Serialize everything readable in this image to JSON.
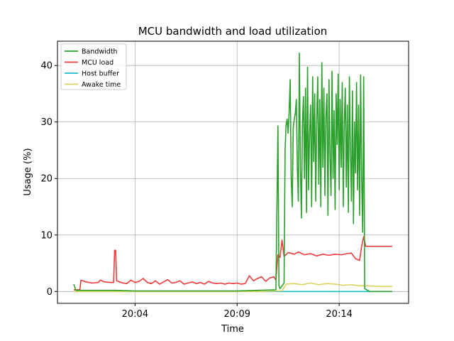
{
  "chart_data": {
    "type": "line",
    "title": "MCU bandwidth and load utilization",
    "xlabel": "Time",
    "ylabel": "Usage (%)",
    "x_unit": "minutes",
    "xlim": [
      "20:00.2",
      "20:17.4"
    ],
    "ylim": [
      -2.1,
      44.3
    ],
    "x_ticks": [
      {
        "value": "20:04",
        "label": "20:04"
      },
      {
        "value": "20:09",
        "label": "20:09"
      },
      {
        "value": "20:14",
        "label": "20:14"
      }
    ],
    "y_ticks": [
      0,
      10,
      20,
      30,
      40
    ],
    "grid": true,
    "legend": "upper left",
    "colors": {
      "bandwidth": "#2ca02c",
      "mcu_load": "#ef3b3b",
      "host_buffer": "#17becf",
      "awake_time": "#d9d45c"
    },
    "series": [
      {
        "name": "Bandwidth",
        "color": "#2ca02c",
        "points": [
          [
            "20:01.0",
            1.3
          ],
          [
            "20:01.1",
            0.2
          ],
          [
            "20:02.0",
            0.2
          ],
          [
            "20:03.0",
            0.2
          ],
          [
            "20:04.0",
            0.1
          ],
          [
            "20:05.0",
            0.1
          ],
          [
            "20:06.0",
            0.1
          ],
          [
            "20:07.0",
            0.1
          ],
          [
            "20:08.0",
            0.1
          ],
          [
            "20:09.0",
            0.1
          ],
          [
            "20:10.0",
            0.2
          ],
          [
            "20:10.9",
            0.3
          ],
          [
            "20:11.0",
            29.3
          ],
          [
            "20:11.05",
            1.0
          ],
          [
            "20:11.1",
            0.5
          ],
          [
            "20:11.3",
            1.5
          ],
          [
            "20:11.35",
            25.0
          ],
          [
            "20:11.4",
            29.5
          ],
          [
            "20:11.45",
            30.5
          ],
          [
            "20:11.5",
            28.0
          ],
          [
            "20:11.55",
            32.0
          ],
          [
            "20:11.6",
            37.5
          ],
          [
            "20:11.65",
            20.0
          ],
          [
            "20:11.7",
            15.0
          ],
          [
            "20:11.75",
            29.0
          ],
          [
            "20:11.8",
            30.5
          ],
          [
            "20:11.85",
            31.5
          ],
          [
            "20:11.9",
            34.0
          ],
          [
            "20:11.95",
            22.0
          ],
          [
            "20:12.0",
            16.0
          ],
          [
            "20:12.05",
            42.2
          ],
          [
            "20:12.1",
            22.0
          ],
          [
            "20:12.15",
            13.0
          ],
          [
            "20:12.2",
            30.0
          ],
          [
            "20:12.25",
            34.5
          ],
          [
            "20:12.3",
            20.0
          ],
          [
            "20:12.35",
            36.0
          ],
          [
            "20:12.4",
            14.0
          ],
          [
            "20:12.45",
            39.7
          ],
          [
            "20:12.5",
            18.0
          ],
          [
            "20:12.55",
            28.0
          ],
          [
            "20:12.6",
            33.0
          ],
          [
            "20:12.65",
            15.0
          ],
          [
            "20:12.7",
            38.0
          ],
          [
            "20:12.75",
            23.0
          ],
          [
            "20:12.8",
            35.0
          ],
          [
            "20:12.85",
            16.0
          ],
          [
            "20:12.9",
            30.0
          ],
          [
            "20:12.95",
            38.0
          ],
          [
            "20:13.0",
            19.0
          ],
          [
            "20:13.05",
            34.0
          ],
          [
            "20:13.1",
            15.0
          ],
          [
            "20:13.15",
            40.5
          ],
          [
            "20:13.2",
            22.0
          ],
          [
            "20:13.25",
            36.0
          ],
          [
            "20:13.3",
            17.0
          ],
          [
            "20:13.35",
            31.0
          ],
          [
            "20:13.4",
            35.0
          ],
          [
            "20:13.45",
            13.5
          ],
          [
            "20:13.5",
            37.5
          ],
          [
            "20:13.55",
            24.0
          ],
          [
            "20:13.6",
            17.0
          ],
          [
            "20:13.65",
            39.0
          ],
          [
            "20:13.7",
            20.0
          ],
          [
            "20:13.75",
            32.0
          ],
          [
            "20:13.8",
            14.5
          ],
          [
            "20:13.85",
            35.0
          ],
          [
            "20:13.9",
            26.0
          ],
          [
            "20:13.95",
            38.5
          ],
          [
            "20:14.0",
            18.0
          ],
          [
            "20:14.05",
            34.0
          ],
          [
            "20:14.1",
            22.0
          ],
          [
            "20:14.15",
            37.0
          ],
          [
            "20:14.2",
            15.0
          ],
          [
            "20:14.25",
            30.0
          ],
          [
            "20:14.3",
            36.0
          ],
          [
            "20:14.35",
            18.5
          ],
          [
            "20:14.4",
            33.0
          ],
          [
            "20:14.45",
            14.0
          ],
          [
            "20:14.5",
            38.0
          ],
          [
            "20:14.55",
            25.0
          ],
          [
            "20:14.6",
            16.0
          ],
          [
            "20:14.65",
            35.5
          ],
          [
            "20:14.7",
            12.0
          ],
          [
            "20:14.75",
            30.0
          ],
          [
            "20:14.8",
            21.0
          ],
          [
            "20:14.85",
            37.0
          ],
          [
            "20:14.9",
            18.0
          ],
          [
            "20:14.95",
            33.0
          ],
          [
            "20:15.0",
            13.5
          ],
          [
            "20:15.05",
            38.3
          ],
          [
            "20:15.1",
            20.0
          ],
          [
            "20:15.15",
            10.5
          ],
          [
            "20:15.2",
            38.0
          ],
          [
            "20:15.25",
            0.5
          ],
          [
            "20:15.5",
            0.0
          ],
          [
            "20:16.0",
            0.0
          ],
          [
            "20:16.6",
            0.0
          ]
        ]
      },
      {
        "name": "MCU load",
        "color": "#ef3b3b",
        "points": [
          [
            "20:01.0",
            0.3
          ],
          [
            "20:01.3",
            0.3
          ],
          [
            "20:01.35",
            2.0
          ],
          [
            "20:01.6",
            1.7
          ],
          [
            "20:01.9",
            1.5
          ],
          [
            "20:02.2",
            1.6
          ],
          [
            "20:02.3",
            2.0
          ],
          [
            "20:02.5",
            1.7
          ],
          [
            "20:02.8",
            1.6
          ],
          [
            "20:02.95",
            1.6
          ],
          [
            "20:03.0",
            7.3
          ],
          [
            "20:03.05",
            7.3
          ],
          [
            "20:03.1",
            1.9
          ],
          [
            "20:03.4",
            1.5
          ],
          [
            "20:03.6",
            1.4
          ],
          [
            "20:03.8",
            2.0
          ],
          [
            "20:04.0",
            1.6
          ],
          [
            "20:04.2",
            1.8
          ],
          [
            "20:04.4",
            2.3
          ],
          [
            "20:04.6",
            1.6
          ],
          [
            "20:04.8",
            1.4
          ],
          [
            "20:05.0",
            1.9
          ],
          [
            "20:05.2",
            1.3
          ],
          [
            "20:05.4",
            1.7
          ],
          [
            "20:05.6",
            2.1
          ],
          [
            "20:05.8",
            1.5
          ],
          [
            "20:06.0",
            1.6
          ],
          [
            "20:06.2",
            1.9
          ],
          [
            "20:06.4",
            1.3
          ],
          [
            "20:06.6",
            1.5
          ],
          [
            "20:06.8",
            1.7
          ],
          [
            "20:07.0",
            1.4
          ],
          [
            "20:07.2",
            1.6
          ],
          [
            "20:07.4",
            1.3
          ],
          [
            "20:07.6",
            1.8
          ],
          [
            "20:07.8",
            1.5
          ],
          [
            "20:08.0",
            1.4
          ],
          [
            "20:08.2",
            1.5
          ],
          [
            "20:08.4",
            1.3
          ],
          [
            "20:08.6",
            1.5
          ],
          [
            "20:08.8",
            1.4
          ],
          [
            "20:09.0",
            1.5
          ],
          [
            "20:09.2",
            1.3
          ],
          [
            "20:09.4",
            1.4
          ],
          [
            "20:09.6",
            2.8
          ],
          [
            "20:09.8",
            1.9
          ],
          [
            "20:10.0",
            2.3
          ],
          [
            "20:10.2",
            2.6
          ],
          [
            "20:10.4",
            1.8
          ],
          [
            "20:10.6",
            2.4
          ],
          [
            "20:10.8",
            2.6
          ],
          [
            "20:10.9",
            2.0
          ],
          [
            "20:11.0",
            6.5
          ],
          [
            "20:11.1",
            6.0
          ],
          [
            "20:11.2",
            9.1
          ],
          [
            "20:11.3",
            6.2
          ],
          [
            "20:11.5",
            6.9
          ],
          [
            "20:11.8",
            6.6
          ],
          [
            "20:12.0",
            7.0
          ],
          [
            "20:12.3",
            6.5
          ],
          [
            "20:12.6",
            6.7
          ],
          [
            "20:12.9",
            6.3
          ],
          [
            "20:13.2",
            6.6
          ],
          [
            "20:13.5",
            6.4
          ],
          [
            "20:13.8",
            6.6
          ],
          [
            "20:14.1",
            6.5
          ],
          [
            "20:14.4",
            6.7
          ],
          [
            "20:14.6",
            6.8
          ],
          [
            "20:14.8",
            5.8
          ],
          [
            "20:15.0",
            5.5
          ],
          [
            "20:15.1",
            8.0
          ],
          [
            "20:15.2",
            9.7
          ],
          [
            "20:15.3",
            8.0
          ],
          [
            "20:16.0",
            8.0
          ],
          [
            "20:16.6",
            8.0
          ]
        ]
      },
      {
        "name": "Host buffer",
        "color": "#17becf",
        "points": [
          [
            "20:01.0",
            0.0
          ],
          [
            "20:05.0",
            0.0
          ],
          [
            "20:10.0",
            0.0
          ],
          [
            "20:15.0",
            0.0
          ],
          [
            "20:16.6",
            0.0
          ]
        ]
      },
      {
        "name": "Awake time",
        "color": "#d9d45c",
        "points": [
          [
            "20:01.0",
            0.0
          ],
          [
            "20:05.0",
            0.0
          ],
          [
            "20:10.0",
            0.0
          ],
          [
            "20:11.2",
            0.1
          ],
          [
            "20:11.4",
            1.3
          ],
          [
            "20:11.8",
            1.4
          ],
          [
            "20:12.2",
            1.2
          ],
          [
            "20:12.6",
            1.5
          ],
          [
            "20:13.0",
            1.2
          ],
          [
            "20:13.4",
            1.4
          ],
          [
            "20:13.8",
            1.3
          ],
          [
            "20:14.2",
            1.1
          ],
          [
            "20:14.6",
            1.2
          ],
          [
            "20:15.0",
            1.0
          ],
          [
            "20:15.3",
            1.0
          ],
          [
            "20:16.0",
            0.9
          ],
          [
            "20:16.6",
            0.9
          ]
        ]
      }
    ]
  }
}
